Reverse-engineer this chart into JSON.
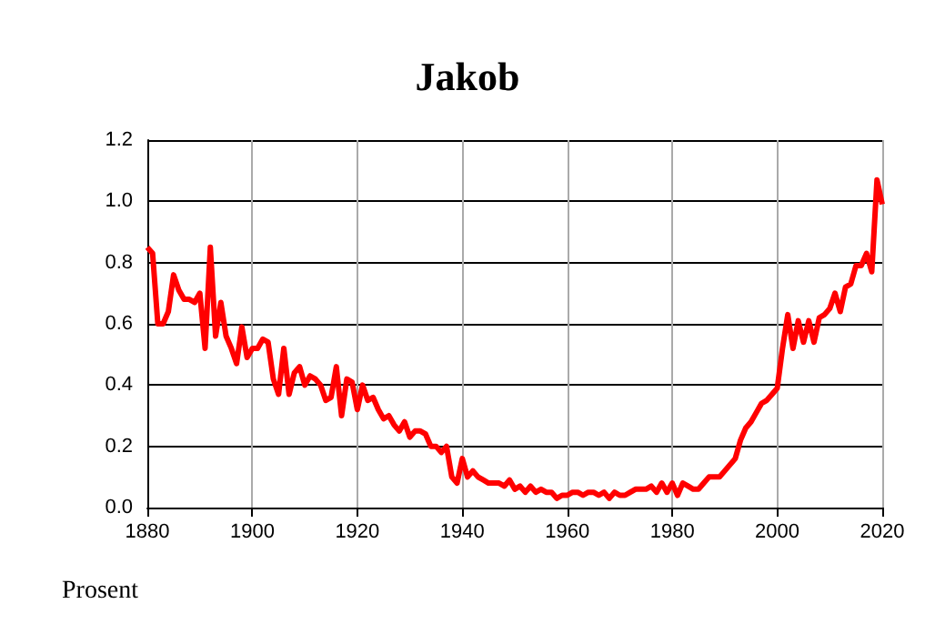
{
  "chart_data": {
    "type": "line",
    "title": "Jakob",
    "ylabel": "Prosent",
    "x": [
      1880,
      1881,
      1882,
      1883,
      1884,
      1885,
      1886,
      1887,
      1888,
      1889,
      1890,
      1891,
      1892,
      1893,
      1894,
      1895,
      1896,
      1897,
      1898,
      1899,
      1900,
      1901,
      1902,
      1903,
      1904,
      1905,
      1906,
      1907,
      1908,
      1909,
      1910,
      1911,
      1912,
      1913,
      1914,
      1915,
      1916,
      1917,
      1918,
      1919,
      1920,
      1921,
      1922,
      1923,
      1924,
      1925,
      1926,
      1927,
      1928,
      1929,
      1930,
      1931,
      1932,
      1933,
      1934,
      1935,
      1936,
      1937,
      1938,
      1939,
      1940,
      1941,
      1942,
      1943,
      1944,
      1945,
      1946,
      1947,
      1948,
      1949,
      1950,
      1951,
      1952,
      1953,
      1954,
      1955,
      1956,
      1957,
      1958,
      1959,
      1960,
      1961,
      1962,
      1963,
      1964,
      1965,
      1966,
      1967,
      1968,
      1969,
      1970,
      1971,
      1972,
      1973,
      1974,
      1975,
      1976,
      1977,
      1978,
      1979,
      1980,
      1981,
      1982,
      1983,
      1984,
      1985,
      1986,
      1987,
      1988,
      1989,
      1990,
      1991,
      1992,
      1993,
      1994,
      1995,
      1996,
      1997,
      1998,
      1999,
      2000,
      2001,
      2002,
      2003,
      2004,
      2005,
      2006,
      2007,
      2008,
      2009,
      2010,
      2011,
      2012,
      2013,
      2014,
      2015,
      2016,
      2017,
      2018,
      2019,
      2020
    ],
    "series": [
      {
        "color": "#ff0000",
        "values": [
          0.85,
          0.83,
          0.6,
          0.6,
          0.64,
          0.76,
          0.71,
          0.68,
          0.68,
          0.67,
          0.7,
          0.52,
          0.85,
          0.56,
          0.67,
          0.56,
          0.52,
          0.47,
          0.59,
          0.49,
          0.52,
          0.52,
          0.55,
          0.54,
          0.42,
          0.37,
          0.52,
          0.37,
          0.44,
          0.46,
          0.4,
          0.43,
          0.42,
          0.4,
          0.35,
          0.36,
          0.46,
          0.3,
          0.42,
          0.41,
          0.32,
          0.4,
          0.35,
          0.36,
          0.32,
          0.29,
          0.3,
          0.27,
          0.25,
          0.28,
          0.23,
          0.25,
          0.25,
          0.24,
          0.2,
          0.2,
          0.18,
          0.2,
          0.1,
          0.08,
          0.16,
          0.1,
          0.12,
          0.1,
          0.09,
          0.08,
          0.08,
          0.08,
          0.07,
          0.09,
          0.06,
          0.07,
          0.05,
          0.07,
          0.05,
          0.06,
          0.05,
          0.05,
          0.03,
          0.04,
          0.04,
          0.05,
          0.05,
          0.04,
          0.05,
          0.05,
          0.04,
          0.05,
          0.03,
          0.05,
          0.04,
          0.04,
          0.05,
          0.06,
          0.06,
          0.06,
          0.07,
          0.05,
          0.08,
          0.05,
          0.08,
          0.04,
          0.08,
          0.07,
          0.06,
          0.06,
          0.08,
          0.1,
          0.1,
          0.1,
          0.12,
          0.14,
          0.16,
          0.22,
          0.26,
          0.28,
          0.31,
          0.34,
          0.35,
          0.37,
          0.39,
          0.52,
          0.63,
          0.52,
          0.61,
          0.54,
          0.61,
          0.54,
          0.62,
          0.63,
          0.65,
          0.7,
          0.64,
          0.72,
          0.73,
          0.79,
          0.79,
          0.83,
          0.77,
          1.07,
          0.99
        ]
      }
    ],
    "xlim": [
      1880,
      2020
    ],
    "xticks": [
      1880,
      1900,
      1920,
      1940,
      1960,
      1980,
      2000,
      2020
    ],
    "ylim": [
      0,
      1.2
    ],
    "yticks": [
      {
        "value": 0,
        "label": "0.0"
      },
      {
        "value": 0.2,
        "label": "0.2"
      },
      {
        "value": 0.4,
        "label": "0.4"
      },
      {
        "value": 0.6,
        "label": "0.6"
      },
      {
        "value": 0.8,
        "label": "0.8"
      },
      {
        "value": 1,
        "label": "1.0"
      },
      {
        "value": 1.2,
        "label": "1.2"
      }
    ],
    "grid": true,
    "marker": "none",
    "line_style": "solid"
  }
}
